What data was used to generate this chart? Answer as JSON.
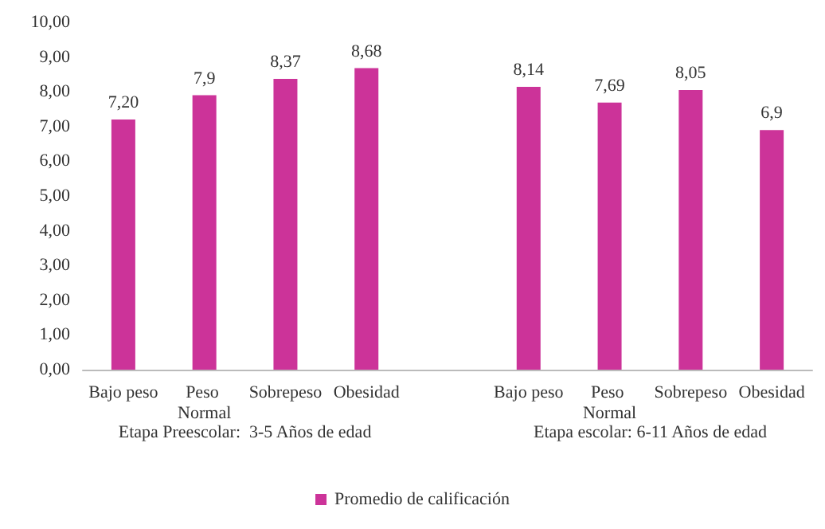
{
  "chart_data": {
    "type": "bar",
    "categories": [
      "Bajo peso",
      "Peso Normal",
      "Sobrepeso",
      "Obesidad",
      null,
      "Bajo peso",
      "Peso Normal",
      "Sobrepeso",
      "Obesidad"
    ],
    "series": [
      {
        "name": "Promedio de calificación",
        "color": "#cc3399",
        "values": [
          7.2,
          7.9,
          8.37,
          8.68,
          null,
          8.14,
          7.69,
          8.05,
          6.9
        ],
        "value_labels": [
          "7,20",
          "7,9",
          "8,37",
          "8,68",
          null,
          "8,14",
          "7,69",
          "8,05",
          "6,9"
        ]
      }
    ],
    "ylim": [
      0,
      10
    ],
    "yticks": [
      {
        "value": 0,
        "label": "0,00"
      },
      {
        "value": 1,
        "label": "1,00"
      },
      {
        "value": 2,
        "label": "2,00"
      },
      {
        "value": 3,
        "label": "3,00"
      },
      {
        "value": 4,
        "label": "4,00"
      },
      {
        "value": 5,
        "label": "5,00"
      },
      {
        "value": 6,
        "label": "6,00"
      },
      {
        "value": 7,
        "label": "7,00"
      },
      {
        "value": 8,
        "label": "8,00"
      },
      {
        "value": 9,
        "label": "9,00"
      },
      {
        "value": 10,
        "label": "10,00"
      }
    ],
    "annotations": [
      "Etapa Preescolar:  3-5 Años de edad",
      "Etapa escolar: 6-11 Años de edad"
    ],
    "legend": "bottom",
    "grid": false
  }
}
